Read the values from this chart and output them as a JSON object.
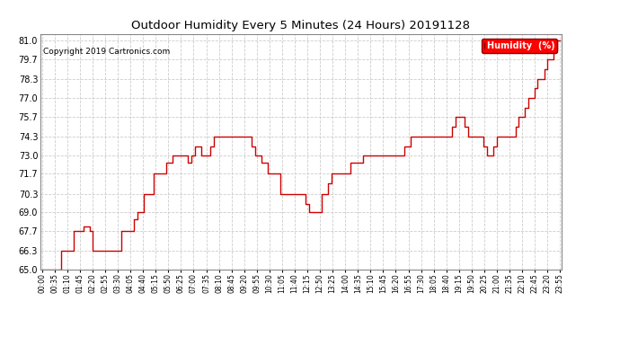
{
  "title": "Outdoor Humidity Every 5 Minutes (24 Hours) 20191128",
  "copyright": "Copyright 2019 Cartronics.com",
  "legend_label": "Humidity  (%)",
  "line_color": "#cc0000",
  "background_color": "#ffffff",
  "plot_bg_color": "#ffffff",
  "grid_color": "#cccccc",
  "ylim": [
    65.0,
    81.45
  ],
  "yticks": [
    65.0,
    66.3,
    67.7,
    69.0,
    70.3,
    71.7,
    73.0,
    74.3,
    75.7,
    77.0,
    78.3,
    79.7,
    81.0
  ],
  "humidity_values": [
    65.0,
    65.0,
    65.0,
    65.0,
    65.0,
    65.0,
    66.3,
    66.3,
    66.3,
    66.3,
    67.7,
    67.7,
    67.7,
    68.0,
    68.0,
    67.7,
    66.3,
    66.3,
    66.3,
    66.3,
    66.3,
    66.3,
    66.3,
    66.3,
    66.3,
    67.7,
    67.7,
    67.7,
    67.7,
    68.5,
    69.0,
    69.0,
    70.3,
    70.3,
    70.3,
    71.7,
    71.7,
    71.7,
    71.7,
    72.5,
    72.5,
    73.0,
    73.0,
    73.0,
    73.0,
    73.0,
    72.5,
    73.0,
    73.6,
    73.6,
    73.0,
    73.0,
    73.0,
    73.6,
    74.3,
    74.3,
    74.3,
    74.3,
    74.3,
    74.3,
    74.3,
    74.3,
    74.3,
    74.3,
    74.3,
    74.3,
    73.6,
    73.0,
    73.0,
    72.5,
    72.5,
    71.7,
    71.7,
    71.7,
    71.7,
    70.3,
    70.3,
    70.3,
    70.3,
    70.3,
    70.3,
    70.3,
    70.3,
    69.6,
    69.0,
    69.0,
    69.0,
    69.0,
    70.3,
    70.3,
    71.0,
    71.7,
    71.7,
    71.7,
    71.7,
    71.7,
    71.7,
    72.5,
    72.5,
    72.5,
    72.5,
    73.0,
    73.0,
    73.0,
    73.0,
    73.0,
    73.0,
    73.0,
    73.0,
    73.0,
    73.0,
    73.0,
    73.0,
    73.0,
    73.6,
    73.6,
    74.3,
    74.3,
    74.3,
    74.3,
    74.3,
    74.3,
    74.3,
    74.3,
    74.3,
    74.3,
    74.3,
    74.3,
    74.3,
    75.0,
    75.7,
    75.7,
    75.7,
    75.0,
    74.3,
    74.3,
    74.3,
    74.3,
    74.3,
    73.6,
    73.0,
    73.0,
    73.6,
    74.3,
    74.3,
    74.3,
    74.3,
    74.3,
    74.3,
    75.0,
    75.7,
    75.7,
    76.3,
    77.0,
    77.0,
    77.7,
    78.3,
    78.3,
    79.0,
    79.7,
    79.7,
    80.3,
    81.0,
    81.0
  ],
  "x_tick_labels": [
    "00:00",
    "00:35",
    "01:10",
    "01:45",
    "02:20",
    "02:55",
    "03:30",
    "04:05",
    "04:40",
    "05:15",
    "05:50",
    "06:25",
    "07:00",
    "07:35",
    "08:10",
    "08:45",
    "09:20",
    "09:55",
    "10:30",
    "11:05",
    "11:40",
    "12:15",
    "12:50",
    "13:25",
    "14:00",
    "14:35",
    "15:10",
    "15:45",
    "16:20",
    "16:55",
    "17:30",
    "18:05",
    "18:40",
    "19:15",
    "19:50",
    "20:25",
    "21:00",
    "21:35",
    "22:10",
    "22:45",
    "23:20",
    "23:55"
  ],
  "title_fontsize": 9.5,
  "copyright_fontsize": 6.5,
  "ytick_fontsize": 7,
  "xtick_fontsize": 5.5,
  "legend_fontsize": 7
}
